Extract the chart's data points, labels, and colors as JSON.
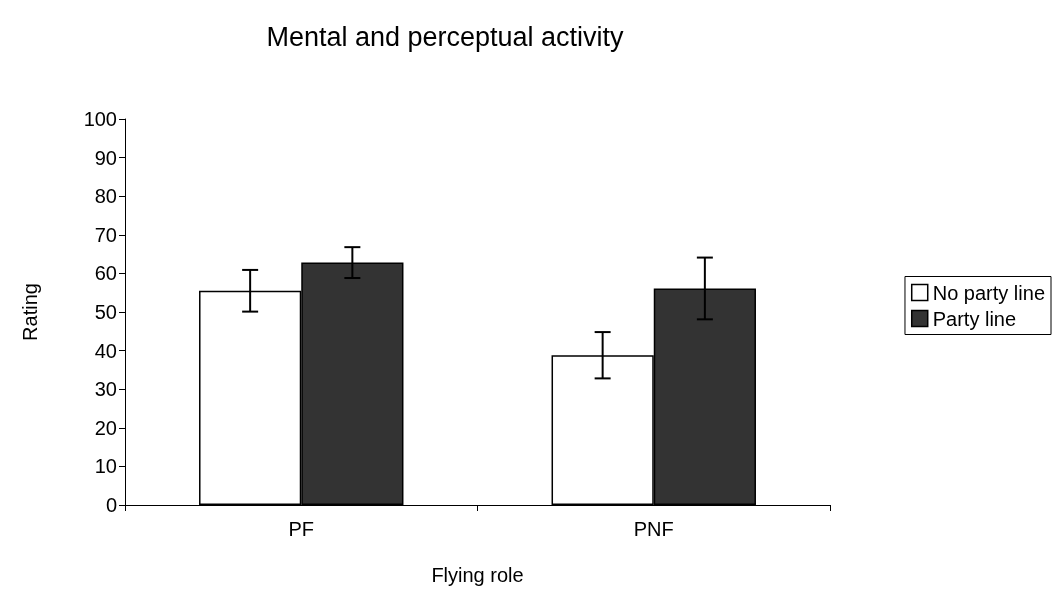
{
  "chart_data": {
    "type": "bar",
    "title": "Mental and perceptual activity",
    "xlabel": "Flying role",
    "ylabel": "Rating",
    "categories": [
      "PF",
      "PNF"
    ],
    "series": [
      {
        "name": "No party line",
        "color": "#ffffff",
        "values": [
          55.5,
          38.8
        ],
        "errors": [
          5.4,
          6
        ]
      },
      {
        "name": "Party line",
        "color": "#333333",
        "values": [
          62.8,
          56.1
        ],
        "errors": [
          4,
          8
        ]
      }
    ],
    "ylim": [
      0,
      100
    ],
    "yticks": [
      0,
      10,
      20,
      30,
      40,
      50,
      60,
      70,
      80,
      90,
      100
    ],
    "grid": false,
    "legend": "right"
  }
}
